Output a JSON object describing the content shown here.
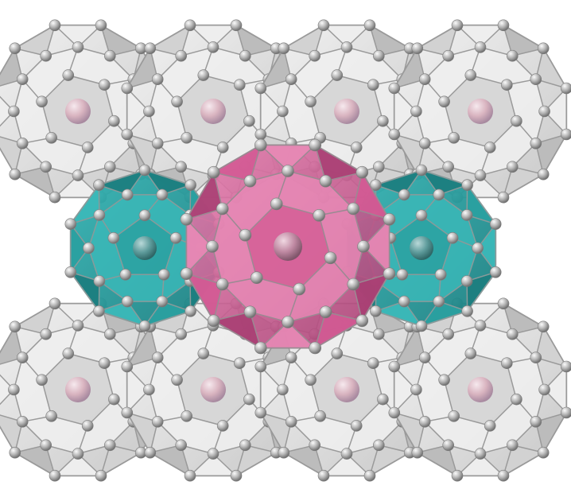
{
  "image": {
    "subject": "clathrate-hydrate",
    "colors": {
      "background": "#ffffff",
      "grey_face_light": "#eeeeee",
      "grey_face_mid": "#d2d2d2",
      "grey_face_dark": "#bcbcbc",
      "grey_edge": "#9a9a9a",
      "atom_grey": "#b4b4b4",
      "teal_face": "#2aa0a0",
      "teal_face_dark": "#1c7e80",
      "magenta_face": "#d35a93",
      "magenta_face_dark": "#a83f73",
      "guest_pink": "#d9b4c0",
      "guest_dark": "#a88aa0"
    },
    "cages": {
      "top_row": [
        "large-cage",
        "large-cage",
        "large-cage",
        "large-cage"
      ],
      "middle_row": [
        "small-cage-teal",
        "large-cage-magenta",
        "small-cage-teal"
      ],
      "bottom_row": [
        "large-cage",
        "large-cage",
        "large-cage",
        "large-cage"
      ]
    }
  }
}
